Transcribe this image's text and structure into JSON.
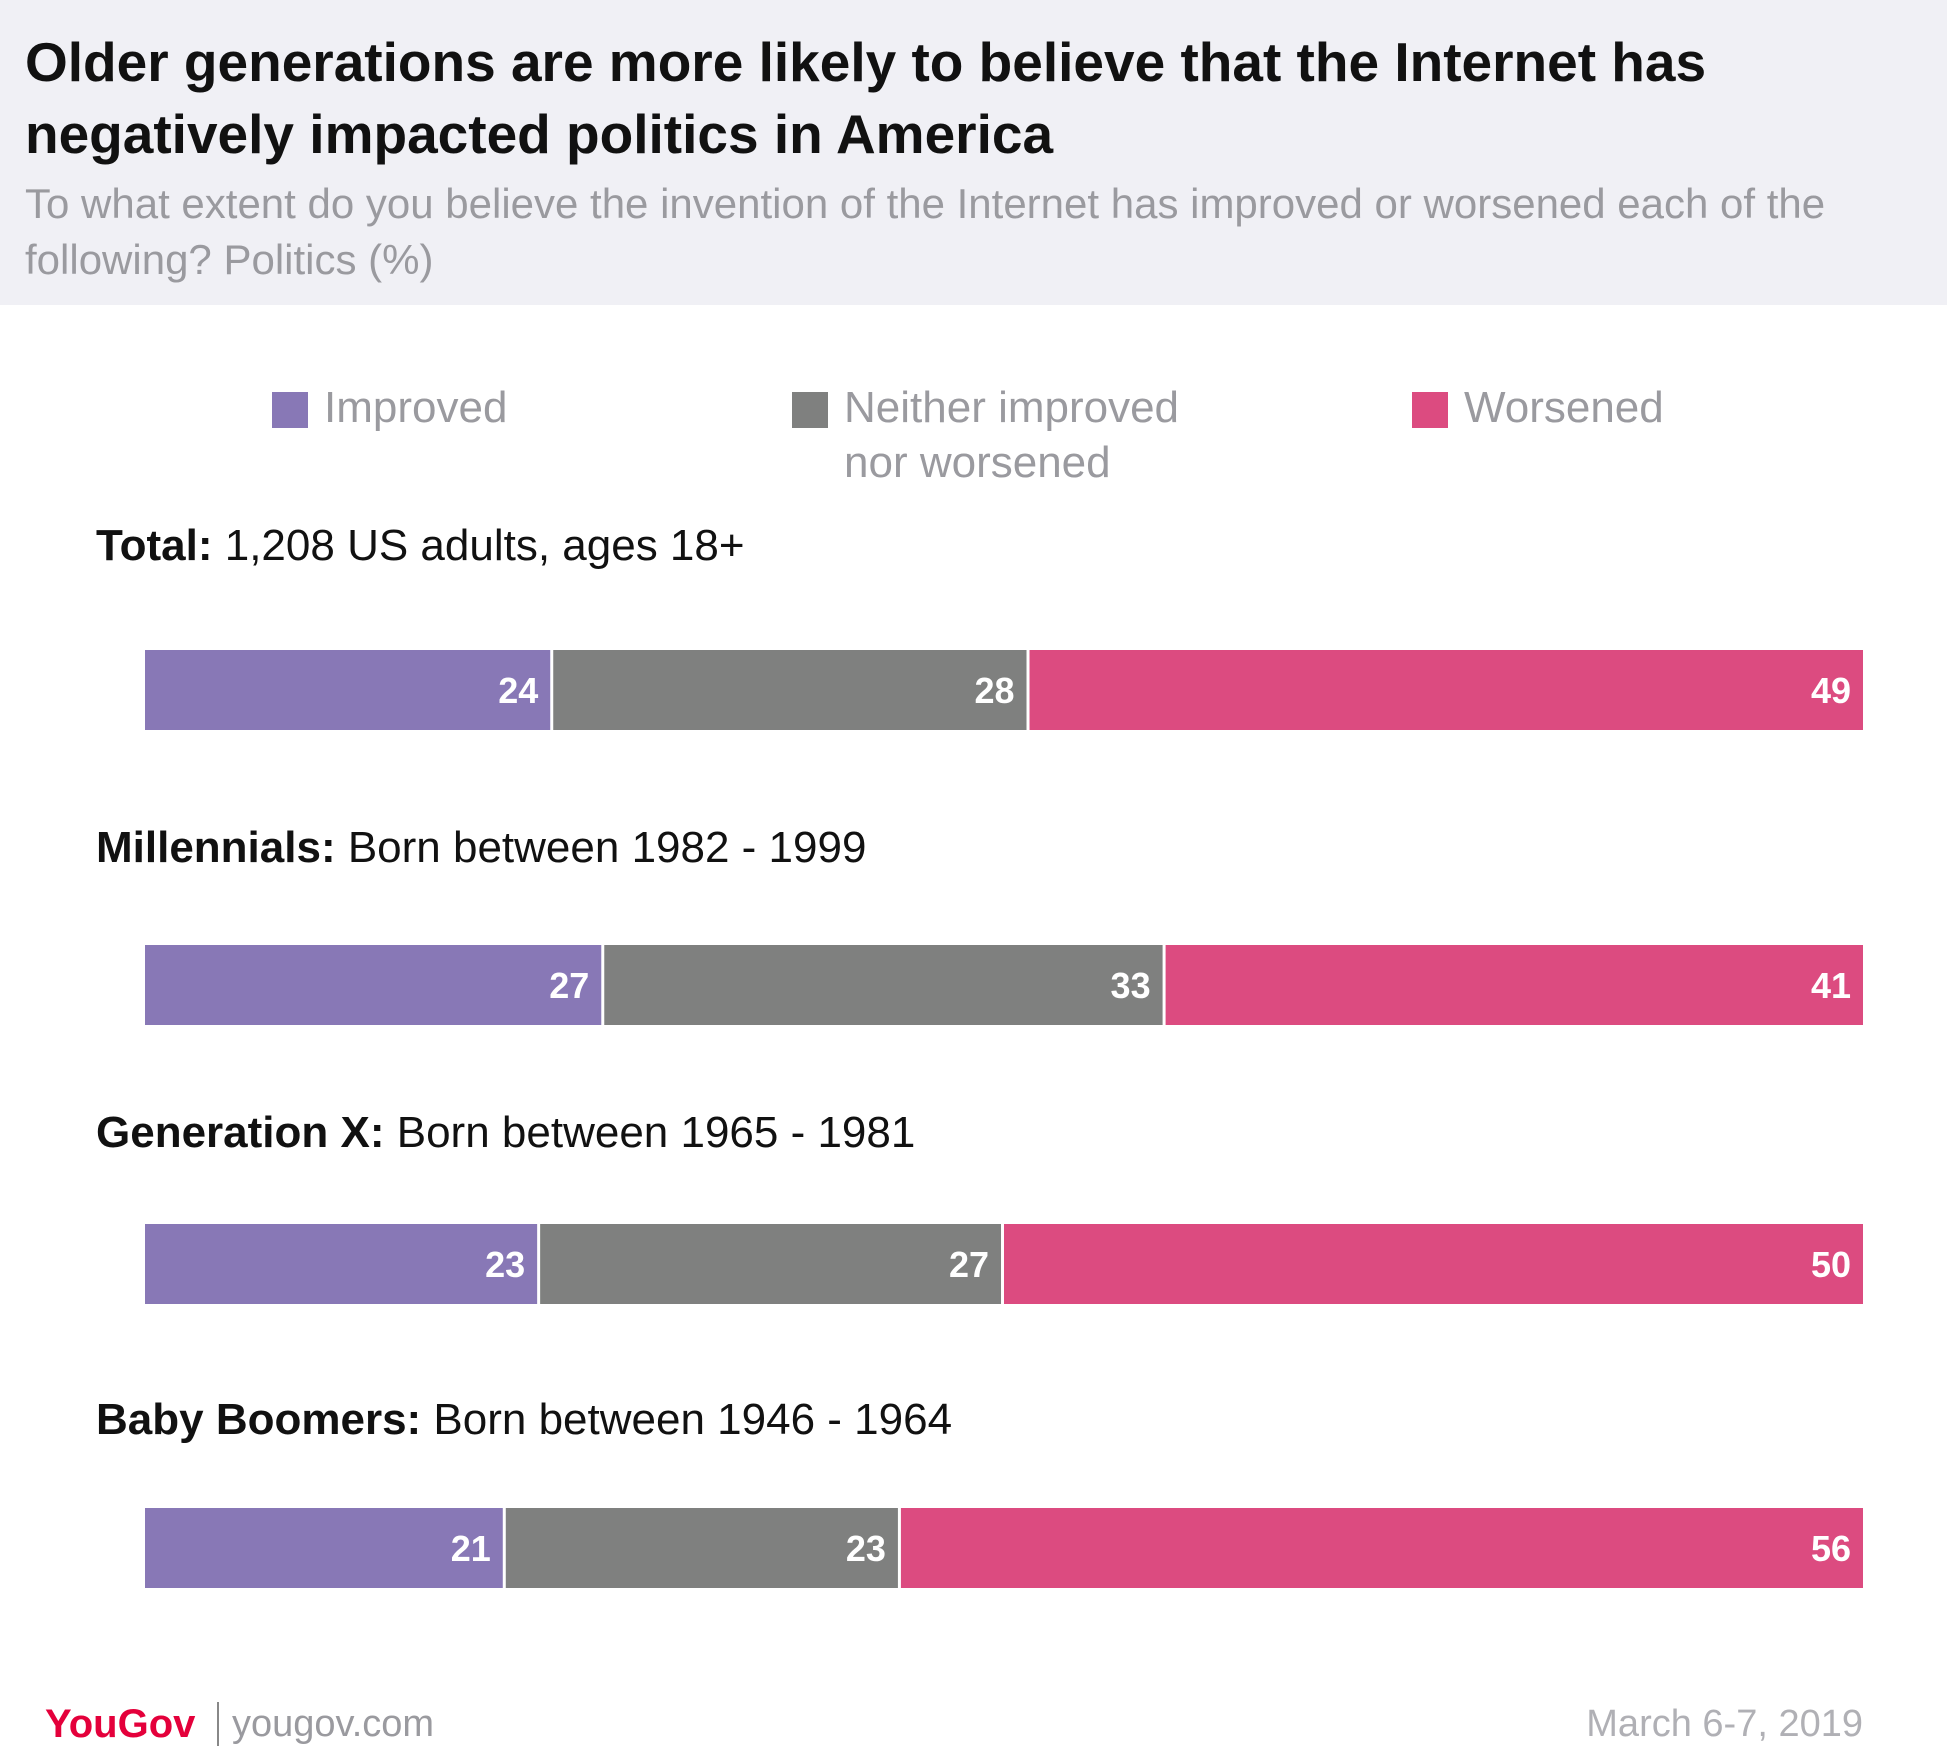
{
  "header": {
    "title": "Older generations are more likely to believe that the Internet has negatively impacted politics in America",
    "subtitle": "To what extent do you believe the invention of the Internet has improved or worsened each of the following? Politics (%)"
  },
  "legend": {
    "improved": "Improved",
    "neither_line1": "Neither improved",
    "neither_line2": "nor worsened",
    "worsened": "Worsened"
  },
  "colors": {
    "improved": "#8878b6",
    "neither": "#7f807f",
    "worsened": "#dc4b80"
  },
  "groups": [
    {
      "name": "Total:",
      "desc": "1,208 US adults, ages 18+"
    },
    {
      "name": "Millennials:",
      "desc": "Born between 1982 - 1999"
    },
    {
      "name": "Generation X:",
      "desc": "Born between 1965 - 1981"
    },
    {
      "name": "Baby Boomers:",
      "desc": "Born between 1946 - 1964"
    }
  ],
  "chart_data": {
    "type": "bar",
    "orientation": "horizontal-stacked",
    "title": "Older generations are more likely to believe that the Internet has negatively impacted politics in America",
    "subtitle": "To what extent do you believe the invention of the Internet has improved or worsened each of the following? Politics (%)",
    "categories": [
      "Total",
      "Millennials",
      "Generation X",
      "Baby Boomers"
    ],
    "series": [
      {
        "name": "Improved",
        "values": [
          24,
          27,
          23,
          21
        ]
      },
      {
        "name": "Neither improved nor worsened",
        "values": [
          28,
          33,
          27,
          23
        ]
      },
      {
        "name": "Worsened",
        "values": [
          49,
          41,
          50,
          56
        ]
      }
    ],
    "xlim": [
      0,
      100
    ],
    "legend": "top",
    "grid": false
  },
  "footer": {
    "logo": "YouGov",
    "url": "yougov.com",
    "date": "March 6-7, 2019"
  }
}
